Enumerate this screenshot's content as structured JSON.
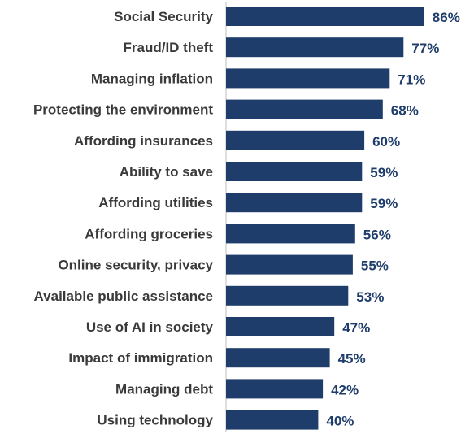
{
  "colors": {
    "bar": "#1f3d6b",
    "axis": "#bfbfbf",
    "category_text": "#3a3a3a",
    "value_text": "#1f3d6b"
  },
  "chart_data": {
    "type": "bar",
    "orientation": "horizontal",
    "title": "",
    "xlabel": "",
    "ylabel": "",
    "xlim": [
      0,
      100
    ],
    "grid": false,
    "value_suffix": "%",
    "categories": [
      "Social Security",
      "Fraud/ID theft",
      "Managing inflation",
      "Protecting the environment",
      "Affording insurances",
      "Ability to save",
      "Affording utilities",
      "Affording groceries",
      "Online security, privacy",
      "Available public assistance",
      "Use of AI in society",
      "Impact of immigration",
      "Managing debt",
      "Using technology"
    ],
    "values": [
      86,
      77,
      71,
      68,
      60,
      59,
      59,
      56,
      55,
      53,
      47,
      45,
      42,
      40
    ],
    "value_labels": [
      "86%",
      "77%",
      "71%",
      "68%",
      "60%",
      "59%",
      "59%",
      "56%",
      "55%",
      "53%",
      "47%",
      "45%",
      "42%",
      "40%"
    ]
  }
}
